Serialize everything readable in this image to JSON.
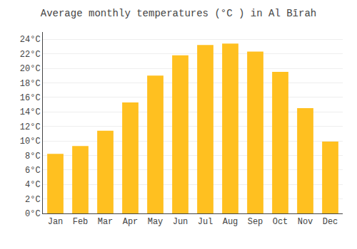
{
  "chart_data": {
    "type": "bar",
    "title": "Average monthly temperatures (°C ) in Al Bīrah",
    "categories": [
      "Jan",
      "Feb",
      "Mar",
      "Apr",
      "May",
      "Jun",
      "Jul",
      "Aug",
      "Sep",
      "Oct",
      "Nov",
      "Dec"
    ],
    "values": [
      8.2,
      9.3,
      11.4,
      15.3,
      19.0,
      21.8,
      23.2,
      23.4,
      22.3,
      19.5,
      14.5,
      9.9
    ],
    "color": "#FFC020",
    "ylim": [
      0,
      25
    ],
    "yticks": [
      {
        "value": 0,
        "label": "0°C"
      },
      {
        "value": 2,
        "label": "2°C"
      },
      {
        "value": 4,
        "label": "4°C"
      },
      {
        "value": 6,
        "label": "6°C"
      },
      {
        "value": 8,
        "label": "8°C"
      },
      {
        "value": 10,
        "label": "10°C"
      },
      {
        "value": 12,
        "label": "12°C"
      },
      {
        "value": 14,
        "label": "14°C"
      },
      {
        "value": 16,
        "label": "16°C"
      },
      {
        "value": 18,
        "label": "18°C"
      },
      {
        "value": 20,
        "label": "20°C"
      },
      {
        "value": 22,
        "label": "22°C"
      },
      {
        "value": 24,
        "label": "24°C"
      }
    ],
    "grid": true
  }
}
